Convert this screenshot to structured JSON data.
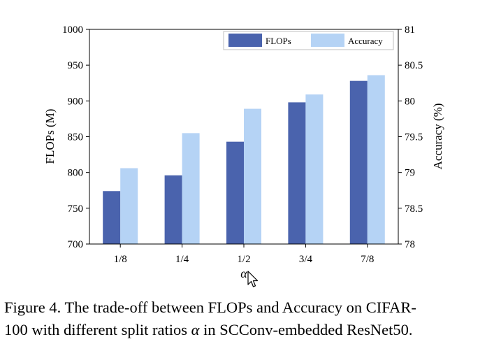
{
  "chart_data": {
    "type": "bar",
    "categories": [
      "1/8",
      "1/4",
      "1/2",
      "3/4",
      "7/8"
    ],
    "series": [
      {
        "name": "FLOPs",
        "axis": "left",
        "color": "#4a63ad",
        "values": [
          774,
          796,
          843,
          898,
          928
        ]
      },
      {
        "name": "Accuracy",
        "axis": "right",
        "color": "#b5d3f5",
        "values": [
          79.06,
          79.55,
          79.89,
          80.09,
          80.36
        ]
      }
    ],
    "xlabel": "α",
    "ylabel_left": "FLOPs (M)",
    "ylabel_right": "Accuracy (%)",
    "ylim_left": [
      700,
      1000
    ],
    "ylim_right": [
      78,
      81
    ],
    "yticks_left": [
      "700",
      "750",
      "800",
      "850",
      "900",
      "950",
      "1000"
    ],
    "yticks_right": [
      "78",
      "78.5",
      "79",
      "79.5",
      "80",
      "80.5",
      "81"
    ],
    "legend_placement": "top-right",
    "grid": false
  },
  "caption": {
    "line1": "Figure 4. The trade-off between FLOPs and Accuracy on CIFAR-",
    "line2_a": "100 with different split ratios ",
    "line2_symbol": "α",
    "line2_b": " in SCConv-embedded ResNet50."
  }
}
